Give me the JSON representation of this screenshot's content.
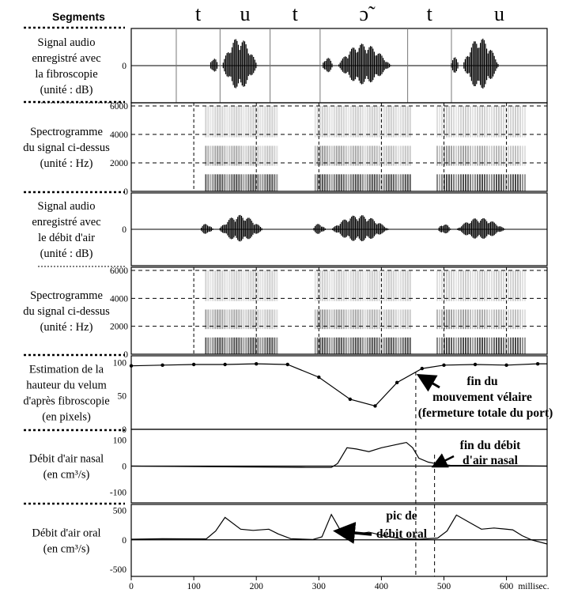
{
  "chart_data": {
    "type": "line",
    "segments_header": "Segments",
    "segments": [
      {
        "label": "t",
        "start": 72,
        "end": 142
      },
      {
        "label": "u",
        "start": 142,
        "end": 222
      },
      {
        "label": "t",
        "start": 222,
        "end": 302
      },
      {
        "label": "ɔ̃",
        "start": 302,
        "end": 442
      },
      {
        "label": "t",
        "start": 442,
        "end": 512
      },
      {
        "label": "u",
        "start": 512,
        "end": 665
      }
    ],
    "x_axis": {
      "ticks": [
        0,
        100,
        200,
        300,
        400,
        500,
        600
      ],
      "unit": "millisec.",
      "range": [
        0,
        665
      ]
    },
    "panels": [
      {
        "id": "audio_fibro",
        "kind": "waveform",
        "label": [
          "Signal audio",
          "enregistré avec",
          "la fibroscopie",
          "(unité : dB)"
        ],
        "ticks": [
          0
        ],
        "bursts": [
          {
            "start": 125,
            "end": 145,
            "amp": 0.3
          },
          {
            "start": 145,
            "end": 225,
            "amp": 0.95
          },
          {
            "start": 305,
            "end": 330,
            "amp": 0.3
          },
          {
            "start": 330,
            "end": 450,
            "amp": 0.75
          },
          {
            "start": 510,
            "end": 530,
            "amp": 0.3
          },
          {
            "start": 530,
            "end": 612,
            "amp": 0.95
          }
        ]
      },
      {
        "id": "spectro_fibro",
        "kind": "spectrogram",
        "label": [
          "Spectrogramme",
          "du signal ci-dessus",
          "(unité : Hz)"
        ],
        "ticks": [
          0,
          2000,
          4000,
          6000
        ],
        "ylim": [
          0,
          6000
        ]
      },
      {
        "id": "audio_airflow",
        "kind": "waveform",
        "label": [
          "Signal audio",
          "enregistré avec",
          "le débit d'air",
          "(unité : dB)"
        ],
        "ticks": [
          0
        ],
        "bursts": [
          {
            "start": 110,
            "end": 140,
            "amp": 0.2
          },
          {
            "start": 140,
            "end": 240,
            "amp": 0.5
          },
          {
            "start": 290,
            "end": 320,
            "amp": 0.2
          },
          {
            "start": 320,
            "end": 450,
            "amp": 0.5
          },
          {
            "start": 490,
            "end": 520,
            "amp": 0.2
          },
          {
            "start": 520,
            "end": 630,
            "amp": 0.4
          }
        ]
      },
      {
        "id": "spectro_airflow",
        "kind": "spectrogram",
        "label": [
          "Spectrogramme",
          "du signal ci-dessus",
          "(unité : Hz)"
        ],
        "ticks": [
          0,
          2000,
          4000,
          6000
        ],
        "ylim": [
          0,
          6000
        ]
      },
      {
        "id": "velum",
        "kind": "line",
        "label": [
          "Estimation de la",
          "hauteur du velum",
          "d'après fibroscopie",
          "(en pixels)"
        ],
        "ticks": [
          0,
          50,
          100
        ],
        "ylim": [
          0,
          110
        ],
        "x": [
          0,
          50,
          100,
          150,
          200,
          250,
          300,
          350,
          390,
          425,
          465,
          500,
          550,
          600,
          650,
          665
        ],
        "y": [
          95,
          96,
          97,
          97,
          98,
          97,
          78,
          45,
          35,
          70,
          91,
          96,
          97,
          96,
          98,
          98
        ]
      },
      {
        "id": "nasal_flow",
        "kind": "line",
        "label": [
          "Débit d'air nasal",
          "(en cm³/s)"
        ],
        "ticks": [
          -100,
          0,
          100
        ],
        "ylim": [
          -140,
          140
        ],
        "x": [
          0,
          280,
          320,
          330,
          345,
          360,
          380,
          400,
          420,
          440,
          450,
          460,
          475,
          490,
          510,
          665
        ],
        "y": [
          0,
          -5,
          -5,
          10,
          70,
          65,
          55,
          70,
          80,
          90,
          70,
          30,
          15,
          8,
          3,
          0
        ]
      },
      {
        "id": "oral_flow",
        "kind": "line",
        "label": [
          "Débit d'air oral",
          "(en cm³/s)"
        ],
        "ticks": [
          -500,
          0,
          500
        ],
        "ylim": [
          -620,
          600
        ],
        "x": [
          0,
          50,
          120,
          135,
          150,
          175,
          195,
          220,
          235,
          255,
          290,
          305,
          320,
          335,
          360,
          380,
          400,
          430,
          460,
          490,
          505,
          520,
          540,
          560,
          580,
          610,
          625,
          640,
          665
        ],
        "y": [
          10,
          20,
          15,
          150,
          380,
          180,
          160,
          180,
          100,
          20,
          5,
          50,
          430,
          150,
          100,
          130,
          80,
          20,
          10,
          30,
          150,
          420,
          300,
          180,
          200,
          170,
          70,
          0,
          -70
        ]
      }
    ],
    "annotations": [
      {
        "id": "fin-mouvement",
        "lines": [
          "fin du",
          "mouvement vélaire",
          "(fermeture totale du port)"
        ]
      },
      {
        "id": "fin-debit",
        "lines": [
          "fin du débit",
          "d'air nasal"
        ]
      },
      {
        "id": "pic-debit",
        "lines": [
          "pic de",
          "débit oral"
        ]
      }
    ]
  }
}
